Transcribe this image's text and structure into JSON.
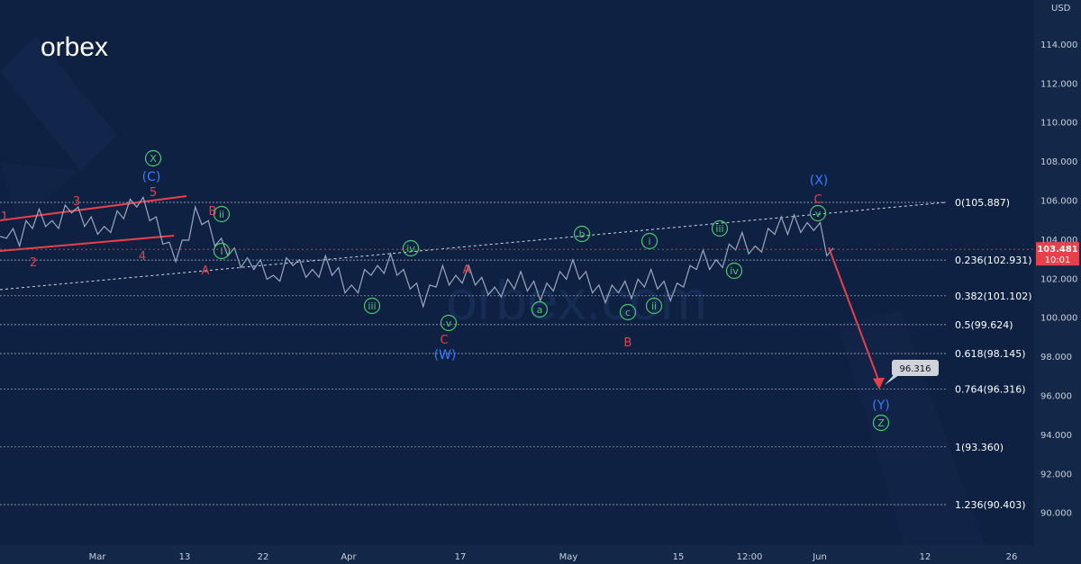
{
  "brand": {
    "logo_text": "orbex"
  },
  "watermark_text": "orbex.com",
  "axis": {
    "currency": "USD",
    "price_ticks": [
      "114.000",
      "112.000",
      "110.000",
      "108.000",
      "106.000",
      "104.000",
      "102.000",
      "100.000",
      "98.000",
      "96.000",
      "94.000",
      "92.000",
      "90.000"
    ],
    "time_ticks": [
      "Mar",
      "13",
      "22",
      "Apr",
      "17",
      "May",
      "15",
      "12:00",
      "Jun",
      "12",
      "26"
    ]
  },
  "current_price": {
    "value": "103.481",
    "timer": "10:01",
    "color": "#e8404a"
  },
  "target_callout": {
    "value": "96.316"
  },
  "fib_levels": [
    {
      "label": "0(105.887)",
      "price": 105.887
    },
    {
      "label": "0.236(102.931)",
      "price": 102.931
    },
    {
      "label": "0.382(101.102)",
      "price": 101.102
    },
    {
      "label": "0.5(99.624)",
      "price": 99.624
    },
    {
      "label": "0.618(98.145)",
      "price": 98.145
    },
    {
      "label": "0.764(96.316)",
      "price": 96.316
    },
    {
      "label": "1(93.360)",
      "price": 93.36
    },
    {
      "label": "1.236(90.403)",
      "price": 90.403
    }
  ],
  "wave_labels": [
    {
      "text": "1",
      "color": "red"
    },
    {
      "text": "2",
      "color": "red"
    },
    {
      "text": "3",
      "color": "red"
    },
    {
      "text": "4",
      "color": "red"
    },
    {
      "text": "5",
      "color": "red"
    },
    {
      "text": "(C)",
      "color": "blue"
    },
    {
      "text": "X",
      "color": "green"
    },
    {
      "text": "B",
      "color": "red"
    },
    {
      "text": "A",
      "color": "red"
    },
    {
      "text": "ii",
      "color": "green"
    },
    {
      "text": "i",
      "color": "green"
    },
    {
      "text": "iii",
      "color": "green"
    },
    {
      "text": "iv",
      "color": "green"
    },
    {
      "text": "v",
      "color": "green"
    },
    {
      "text": "C",
      "color": "red"
    },
    {
      "text": "(W)",
      "color": "blue"
    },
    {
      "text": "A",
      "color": "red"
    },
    {
      "text": "a",
      "color": "green"
    },
    {
      "text": "b",
      "color": "green"
    },
    {
      "text": "c",
      "color": "green"
    },
    {
      "text": "B",
      "color": "red"
    },
    {
      "text": "i",
      "color": "green"
    },
    {
      "text": "ii",
      "color": "green"
    },
    {
      "text": "iii",
      "color": "green"
    },
    {
      "text": "iv",
      "color": "green"
    },
    {
      "text": "v",
      "color": "green"
    },
    {
      "text": "C",
      "color": "red"
    },
    {
      "text": "(X)",
      "color": "blue"
    },
    {
      "text": "(Y)",
      "color": "blue"
    },
    {
      "text": "Z",
      "color": "green"
    }
  ],
  "chart_data": {
    "type": "line",
    "title": "",
    "xlabel": "",
    "ylabel": "USD",
    "ylim": [
      88.5,
      116.0
    ],
    "grid": false,
    "series": [
      {
        "values": [
          103.8,
          104.4,
          104.2,
          104.0,
          104.6,
          104.9,
          105.2,
          105.0,
          104.6,
          104.9,
          105.4,
          105.7,
          105.3,
          105.0,
          104.8,
          104.6,
          104.3,
          104.7,
          105.1,
          105.4,
          105.7,
          106.0,
          105.8,
          105.3,
          104.8,
          104.1,
          103.5,
          103.2,
          103.6,
          104.3,
          105.3,
          105.1,
          104.6,
          104.0,
          103.7,
          103.5,
          103.2,
          102.9,
          102.7,
          102.8,
          102.6,
          102.3,
          101.8,
          102.2,
          102.7,
          103.0,
          102.6,
          102.4,
          102.1,
          102.4,
          102.8,
          102.5,
          102.2,
          101.6,
          101.3,
          101.6,
          102.1,
          102.5,
          102.3,
          102.6,
          102.9,
          102.5,
          102.1,
          101.8,
          101.4,
          100.9,
          101.3,
          101.9,
          102.3,
          102.0,
          101.8,
          102.1,
          102.3,
          102.0,
          101.7,
          101.5,
          101.2,
          101.4,
          101.6,
          101.8,
          102.0,
          101.7,
          101.5,
          101.2,
          101.4,
          101.7,
          102.0,
          102.3,
          102.6,
          102.3,
          102.0,
          101.6,
          101.3,
          101.1,
          101.3,
          101.6,
          101.5,
          101.3,
          101.6,
          101.9,
          102.1,
          101.8,
          101.5,
          101.2,
          101.4,
          101.9,
          102.3,
          102.8,
          103.1,
          102.8,
          102.6,
          102.9,
          103.4,
          103.8,
          104.0,
          103.6,
          103.3,
          103.7,
          104.2,
          104.6,
          104.8,
          104.6,
          104.9,
          104.7,
          104.5,
          104.8,
          104.5,
          103.5,
          103.2
        ]
      }
    ],
    "target_path": {
      "from": 103.48,
      "to": 96.316
    }
  }
}
